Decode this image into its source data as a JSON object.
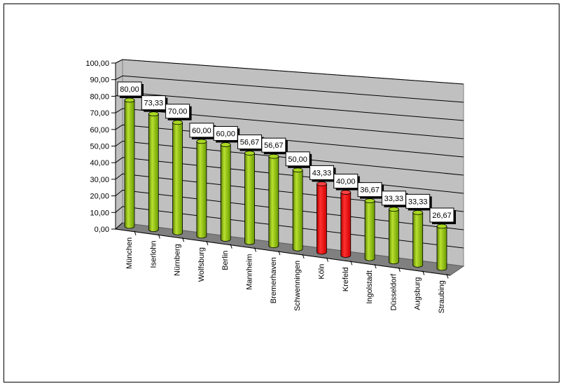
{
  "chart_data": {
    "type": "bar",
    "style": "3d-cylinder",
    "title": "",
    "xlabel": "",
    "ylabel": "",
    "ylim": [
      0,
      100
    ],
    "yticks": [
      "0,00",
      "10,00",
      "20,00",
      "30,00",
      "40,00",
      "50,00",
      "60,00",
      "70,00",
      "80,00",
      "90,00",
      "100,00"
    ],
    "grid": true,
    "categories": [
      "München",
      "Iserlohn",
      "Nürnberg",
      "Wolfsburg",
      "Berlin",
      "Mannheim",
      "Bremerhaven",
      "Schwenningen",
      "Köln",
      "Krefeld",
      "Ingolstadt",
      "Düsseldorf",
      "Augsburg",
      "Straubing"
    ],
    "values": [
      80.0,
      73.33,
      70.0,
      60.0,
      60.0,
      56.67,
      56.67,
      50.0,
      43.33,
      40.0,
      36.67,
      33.33,
      33.33,
      26.67
    ],
    "data_labels": [
      "80,00",
      "73,33",
      "70,00",
      "60,00",
      "60,00",
      "56,67",
      "56,67",
      "50,00",
      "43,33",
      "40,00",
      "36,67",
      "33,33",
      "33,33",
      "26,67"
    ],
    "colors": {
      "default": "#8cc000",
      "highlight": "#ff0000",
      "wall": "#c0c0c0",
      "floor": "#808080"
    },
    "highlighted": [
      "Köln",
      "Krefeld"
    ]
  }
}
